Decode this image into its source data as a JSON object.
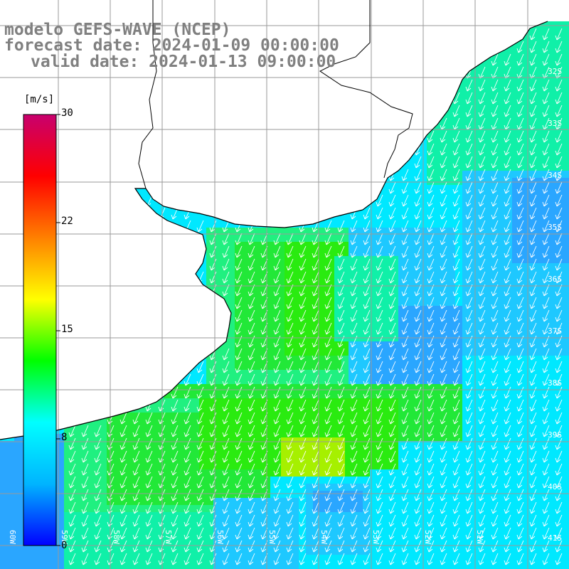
{
  "title": {
    "line1": "modelo GEFS-WAVE (NCEP)",
    "line2": "forecast date: 2024-01-09 00:00:00",
    "line3": "valid date: 2024-01-13 09:00:00"
  },
  "colorbar": {
    "unit": "[m/s]",
    "ticks": [
      "30",
      "22",
      "15",
      "8",
      "0"
    ],
    "ramp_colors": [
      "#0000ff",
      "#00b4ff",
      "#00ffff",
      "#00ff00",
      "#ffff00",
      "#ff8000",
      "#ff0000",
      "#c8006e"
    ]
  },
  "lat_labels": [
    "32S",
    "33S",
    "34S",
    "35S",
    "36S",
    "37S",
    "38S",
    "39S",
    "40S",
    "41S"
  ],
  "lon_labels": [
    "60W",
    "59W",
    "58W",
    "57W",
    "56W",
    "55W",
    "54W",
    "53W",
    "52W",
    "51W"
  ],
  "map": {
    "ocean_colors": {
      "blue": "#2aa6ff",
      "cyan_blue": "#1ec8ff",
      "cyan": "#00e8ff",
      "cyan_green": "#10f0a8",
      "green_light": "#20f080",
      "green": "#22e838",
      "green_strong": "#2aeb10",
      "yellow_green": "#a6f000"
    },
    "land_color": "#ffffff",
    "grid_color": "#9a9a9a",
    "coast_color": "#000000",
    "arrow_color": "#ffffff"
  }
}
